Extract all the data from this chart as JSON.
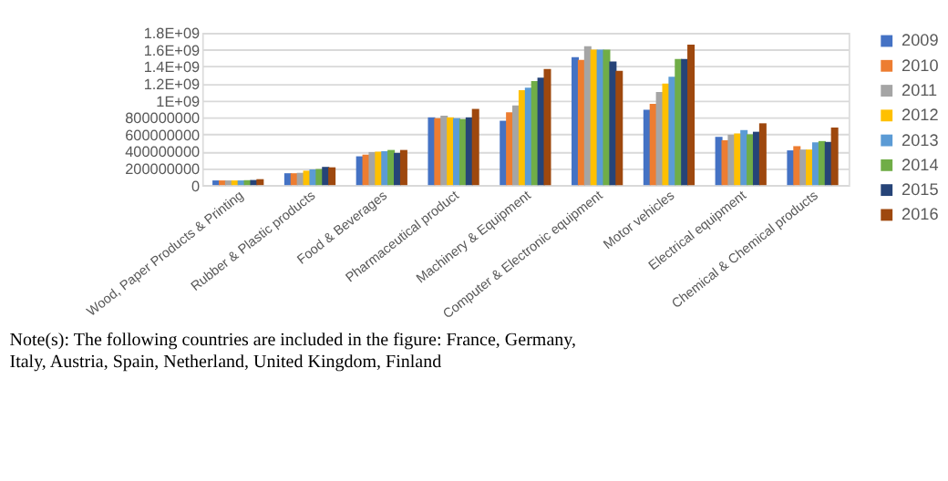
{
  "chart_data": {
    "type": "bar",
    "categories": [
      "Wood, Paper Products & Printing",
      "Rubber & Plastic products",
      "Food & Beverages",
      "Pharmaceutical product",
      "Machinery & Equipment",
      "Computer & Electronic equipment",
      "Motor vehicles",
      "Electrical equipment",
      "Chemical & Chemical products"
    ],
    "series": [
      {
        "name": "2009",
        "color": "#4472c4",
        "values": [
          55000000,
          140000000,
          340000000,
          800000000,
          760000000,
          1510000000,
          890000000,
          570000000,
          410000000
        ]
      },
      {
        "name": "2010",
        "color": "#ed7d31",
        "values": [
          55000000,
          140000000,
          360000000,
          790000000,
          860000000,
          1480000000,
          960000000,
          530000000,
          460000000
        ]
      },
      {
        "name": "2011",
        "color": "#a5a5a5",
        "values": [
          55000000,
          145000000,
          390000000,
          820000000,
          940000000,
          1640000000,
          1100000000,
          595000000,
          420000000
        ]
      },
      {
        "name": "2012",
        "color": "#ffc000",
        "values": [
          55000000,
          170000000,
          395000000,
          800000000,
          1120000000,
          1600000000,
          1200000000,
          610000000,
          420000000
        ]
      },
      {
        "name": "2013",
        "color": "#5b9bd5",
        "values": [
          55000000,
          185000000,
          400000000,
          790000000,
          1150000000,
          1600000000,
          1280000000,
          650000000,
          505000000
        ]
      },
      {
        "name": "2014",
        "color": "#70ad47",
        "values": [
          58000000,
          190000000,
          415000000,
          780000000,
          1230000000,
          1600000000,
          1490000000,
          600000000,
          520000000
        ]
      },
      {
        "name": "2015",
        "color": "#264478",
        "values": [
          60000000,
          215000000,
          380000000,
          800000000,
          1270000000,
          1460000000,
          1490000000,
          630000000,
          510000000
        ]
      },
      {
        "name": "2016",
        "color": "#9e480e",
        "values": [
          70000000,
          210000000,
          415000000,
          900000000,
          1370000000,
          1350000000,
          1660000000,
          730000000,
          680000000
        ]
      }
    ],
    "ylim": [
      0,
      1800000000
    ],
    "yticks": [
      0,
      200000000,
      400000000,
      600000000,
      800000000,
      {
        "value": 1000000000,
        "label": "1E+09"
      },
      {
        "value": 1200000000,
        "label": "1.2E+09"
      },
      {
        "value": 1400000000,
        "label": "1.4E+09"
      },
      {
        "value": 1600000000,
        "label": "1.6E+09"
      },
      {
        "value": 1800000000,
        "label": "1.8E+09"
      }
    ],
    "grid": "y",
    "legend": "right",
    "annotations": [
      "Note(s): The following countries are included in the figure: France, Germany, Italy, Austria, Spain, Netherland, United Kingdom, Finland"
    ]
  }
}
